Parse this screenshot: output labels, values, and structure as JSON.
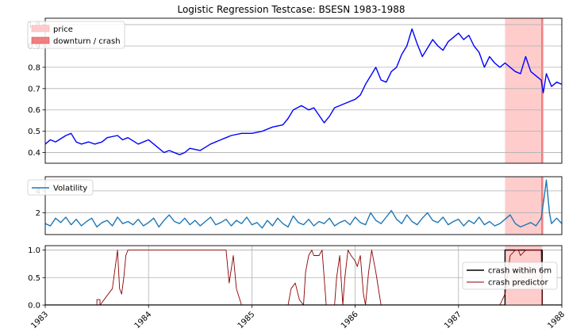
{
  "chart_data": [
    {
      "type": "line",
      "title": "Logistic Regression Testcase: BSESN 1983-1988",
      "xlabel": "",
      "ylabel": "",
      "xlim": [
        1983.0,
        1988.0
      ],
      "ylim": [
        0.35,
        1.03
      ],
      "yticks": [
        "0.4",
        "0.5",
        "0.6",
        "0.7",
        "0.8",
        "0.9",
        "1.0"
      ],
      "grid": "horizontal",
      "legend_position": "top-left",
      "legend": [
        "price",
        "downturn / crash"
      ],
      "shaded_regions": [
        {
          "label": "price",
          "x": [
            1987.45,
            1987.81
          ],
          "color": "#ffcccc"
        },
        {
          "label": "downturn / crash",
          "x": [
            1987.8,
            1987.82
          ],
          "color": "#f08080"
        }
      ],
      "series": [
        {
          "color": "#0000ff",
          "x": [
            1983.0,
            1983.05,
            1983.1,
            1983.2,
            1983.25,
            1983.3,
            1983.35,
            1983.42,
            1983.48,
            1983.55,
            1983.6,
            1983.7,
            1983.75,
            1983.8,
            1983.9,
            1984.0,
            1984.1,
            1984.15,
            1984.2,
            1984.3,
            1984.35,
            1984.4,
            1984.5,
            1984.6,
            1984.7,
            1984.75,
            1984.8,
            1984.9,
            1985.0,
            1985.1,
            1985.2,
            1985.3,
            1985.35,
            1985.4,
            1985.48,
            1985.55,
            1985.6,
            1985.7,
            1985.75,
            1985.8,
            1985.9,
            1986.0,
            1986.05,
            1986.1,
            1986.15,
            1986.2,
            1986.25,
            1986.3,
            1986.35,
            1986.4,
            1986.45,
            1986.5,
            1986.55,
            1986.6,
            1986.65,
            1986.7,
            1986.75,
            1986.8,
            1986.85,
            1986.9,
            1986.95,
            1987.0,
            1987.05,
            1987.1,
            1987.15,
            1987.2,
            1987.25,
            1987.3,
            1987.35,
            1987.4,
            1987.45,
            1987.5,
            1987.55,
            1987.6,
            1987.65,
            1987.7,
            1987.75,
            1987.8,
            1987.82,
            1987.85,
            1987.9,
            1987.95,
            1988.0
          ],
          "values": [
            0.44,
            0.46,
            0.45,
            0.48,
            0.49,
            0.45,
            0.44,
            0.45,
            0.44,
            0.45,
            0.47,
            0.48,
            0.46,
            0.47,
            0.44,
            0.46,
            0.42,
            0.4,
            0.41,
            0.39,
            0.4,
            0.42,
            0.41,
            0.44,
            0.46,
            0.47,
            0.48,
            0.49,
            0.49,
            0.5,
            0.52,
            0.53,
            0.56,
            0.6,
            0.62,
            0.6,
            0.61,
            0.54,
            0.57,
            0.61,
            0.63,
            0.65,
            0.67,
            0.72,
            0.76,
            0.8,
            0.74,
            0.73,
            0.78,
            0.8,
            0.86,
            0.9,
            0.98,
            0.91,
            0.85,
            0.89,
            0.93,
            0.9,
            0.88,
            0.92,
            0.94,
            0.96,
            0.93,
            0.95,
            0.9,
            0.87,
            0.8,
            0.85,
            0.82,
            0.8,
            0.82,
            0.8,
            0.78,
            0.77,
            0.85,
            0.78,
            0.76,
            0.74,
            0.68,
            0.77,
            0.71,
            0.73,
            0.72
          ]
        }
      ]
    },
    {
      "type": "line",
      "xlabel": "",
      "ylabel": "",
      "xlim": [
        1983.0,
        1988.0
      ],
      "ylim": [
        0.0,
        5.3
      ],
      "yticks": [
        "2",
        "4"
      ],
      "grid": "horizontal",
      "legend_position": "top-left",
      "legend": [
        "Volatility"
      ],
      "shaded_regions": [
        {
          "x": [
            1987.45,
            1987.81
          ],
          "color": "#ffcccc"
        },
        {
          "x": [
            1987.8,
            1987.82
          ],
          "color": "#f08080"
        }
      ],
      "series": [
        {
          "name": "Volatility",
          "color": "#1f77b4",
          "x": [
            1983.0,
            1983.05,
            1983.1,
            1983.15,
            1983.2,
            1983.25,
            1983.3,
            1983.35,
            1983.4,
            1983.45,
            1983.5,
            1983.55,
            1983.6,
            1983.65,
            1983.7,
            1983.75,
            1983.8,
            1983.85,
            1983.9,
            1983.95,
            1984.0,
            1984.05,
            1984.1,
            1984.15,
            1984.2,
            1984.25,
            1984.3,
            1984.35,
            1984.4,
            1984.45,
            1984.5,
            1984.55,
            1984.6,
            1984.65,
            1984.7,
            1984.75,
            1984.8,
            1984.85,
            1984.9,
            1984.95,
            1985.0,
            1985.05,
            1985.1,
            1985.15,
            1985.2,
            1985.25,
            1985.3,
            1985.35,
            1985.4,
            1985.45,
            1985.5,
            1985.55,
            1985.6,
            1985.65,
            1985.7,
            1985.75,
            1985.8,
            1985.85,
            1985.9,
            1985.95,
            1986.0,
            1986.05,
            1986.1,
            1986.15,
            1986.2,
            1986.25,
            1986.3,
            1986.35,
            1986.4,
            1986.45,
            1986.5,
            1986.55,
            1986.6,
            1986.65,
            1986.7,
            1986.75,
            1986.8,
            1986.85,
            1986.9,
            1986.95,
            1987.0,
            1987.05,
            1987.1,
            1987.15,
            1987.2,
            1987.25,
            1987.3,
            1987.35,
            1987.4,
            1987.45,
            1987.5,
            1987.55,
            1987.6,
            1987.65,
            1987.7,
            1987.75,
            1987.8,
            1987.83,
            1987.85,
            1987.88,
            1987.9,
            1987.95,
            1988.0
          ],
          "values": [
            1.0,
            0.8,
            1.5,
            1.1,
            1.6,
            0.9,
            1.4,
            0.8,
            1.2,
            1.5,
            0.7,
            1.1,
            1.3,
            0.8,
            1.6,
            1.0,
            1.2,
            0.9,
            1.4,
            0.8,
            1.1,
            1.5,
            0.7,
            1.3,
            1.8,
            1.2,
            1.0,
            1.5,
            0.9,
            1.3,
            0.8,
            1.2,
            1.6,
            0.9,
            1.1,
            1.4,
            0.8,
            1.3,
            1.0,
            1.6,
            0.9,
            1.1,
            0.6,
            1.3,
            0.8,
            1.5,
            1.0,
            0.7,
            1.7,
            1.1,
            0.9,
            1.4,
            0.8,
            1.2,
            1.0,
            1.5,
            0.8,
            1.1,
            1.3,
            0.9,
            1.6,
            1.1,
            0.9,
            2.0,
            1.3,
            1.0,
            1.6,
            2.2,
            1.4,
            1.0,
            1.8,
            1.2,
            0.9,
            1.5,
            2.0,
            1.3,
            1.1,
            1.6,
            0.9,
            1.2,
            1.4,
            0.8,
            1.3,
            1.0,
            1.6,
            0.9,
            1.2,
            0.8,
            1.0,
            1.4,
            1.8,
            1.0,
            0.7,
            0.9,
            1.1,
            0.8,
            1.5,
            3.5,
            5.0,
            2.0,
            1.0,
            1.5,
            1.0
          ]
        }
      ]
    },
    {
      "type": "line",
      "xlabel": "",
      "ylabel": "",
      "xlim": [
        1983.0,
        1988.0
      ],
      "ylim": [
        0.0,
        1.08
      ],
      "yticks": [
        "0.0",
        "0.5",
        "1.0"
      ],
      "xticks": [
        "1983",
        "1984",
        "1985",
        "1986",
        "1987",
        "1988"
      ],
      "grid": "both",
      "legend_position": "right",
      "legend": [
        "crash within 6m",
        "crash predictor"
      ],
      "shaded_regions": [
        {
          "x": [
            1987.45,
            1987.81
          ],
          "color": "#ffcccc"
        }
      ],
      "series": [
        {
          "name": "crash within 6m",
          "color": "#000000",
          "x": [
            1983.0,
            1987.45,
            1987.45,
            1987.81,
            1987.81,
            1988.0
          ],
          "values": [
            0,
            0,
            1,
            1,
            0,
            0
          ]
        },
        {
          "name": "crash predictor",
          "color": "#8b0000",
          "x": [
            1983.0,
            1983.5,
            1983.5,
            1983.53,
            1983.53,
            1983.65,
            1983.7,
            1983.72,
            1983.74,
            1983.76,
            1983.78,
            1983.8,
            1983.82,
            1984.0,
            1984.3,
            1984.6,
            1984.75,
            1984.78,
            1984.82,
            1984.85,
            1984.9,
            1984.93,
            1984.96,
            1985.0,
            1985.05,
            1985.1,
            1985.2,
            1985.3,
            1985.35,
            1985.38,
            1985.42,
            1985.46,
            1985.5,
            1985.52,
            1985.55,
            1985.58,
            1985.6,
            1985.65,
            1985.68,
            1985.72,
            1985.75,
            1985.78,
            1985.8,
            1985.82,
            1985.85,
            1985.88,
            1985.9,
            1985.93,
            1985.96,
            1986.0,
            1986.02,
            1986.05,
            1986.08,
            1986.1,
            1986.13,
            1986.16,
            1986.2,
            1986.25,
            1986.3,
            1986.5,
            1987.0,
            1987.2,
            1987.3,
            1987.35,
            1987.4,
            1987.45,
            1987.5,
            1987.55,
            1987.58,
            1987.6,
            1987.65,
            1987.7,
            1987.75,
            1987.8,
            1987.81,
            1988.0
          ],
          "values": [
            0.0,
            0.0,
            0.1,
            0.1,
            0.0,
            0.3,
            1.0,
            0.3,
            0.2,
            0.5,
            0.9,
            1.0,
            1.0,
            1.0,
            1.0,
            1.0,
            1.0,
            0.4,
            0.9,
            0.3,
            0.0,
            0.0,
            0.0,
            0.0,
            0.0,
            0.0,
            0.0,
            0.0,
            0.0,
            0.3,
            0.4,
            0.1,
            0.0,
            0.6,
            0.9,
            1.0,
            0.9,
            0.9,
            1.0,
            0.0,
            0.0,
            0.0,
            0.0,
            0.5,
            0.9,
            0.0,
            0.5,
            1.0,
            0.9,
            0.8,
            0.7,
            0.9,
            0.2,
            0.0,
            0.6,
            1.0,
            0.6,
            0.0,
            0.0,
            0.0,
            0.0,
            0.0,
            0.0,
            0.0,
            0.0,
            0.2,
            0.9,
            1.0,
            1.0,
            0.9,
            1.0,
            1.0,
            1.0,
            1.0,
            0.0,
            0.0
          ]
        }
      ]
    }
  ]
}
